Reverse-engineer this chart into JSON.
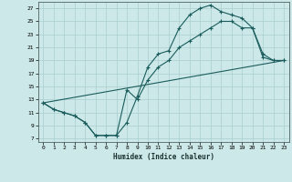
{
  "xlabel": "Humidex (Indice chaleur)",
  "xlim": [
    -0.5,
    23.5
  ],
  "ylim": [
    6.5,
    28
  ],
  "xticks": [
    0,
    1,
    2,
    3,
    4,
    5,
    6,
    7,
    8,
    9,
    10,
    11,
    12,
    13,
    14,
    15,
    16,
    17,
    18,
    19,
    20,
    21,
    22,
    23
  ],
  "yticks": [
    7,
    9,
    11,
    13,
    15,
    17,
    19,
    21,
    23,
    25,
    27
  ],
  "background_color": "#cce8e8",
  "grid_color": "#aacece",
  "line_color": "#1a5c5c",
  "line1_x": [
    0,
    1,
    2,
    3,
    4,
    5,
    6,
    7,
    8,
    9,
    10,
    11,
    12,
    13,
    14,
    15,
    16,
    17,
    18,
    19,
    20,
    21,
    22,
    23
  ],
  "line1_y": [
    12.5,
    11.5,
    11.0,
    10.5,
    9.5,
    7.5,
    7.5,
    7.5,
    9.5,
    13.5,
    18.0,
    20.0,
    20.5,
    24.0,
    26.0,
    27.0,
    27.5,
    26.5,
    26.0,
    25.5,
    24.0,
    19.5,
    19.0,
    19.0
  ],
  "line2_x": [
    0,
    1,
    2,
    3,
    4,
    5,
    6,
    7,
    8,
    9,
    10,
    11,
    12,
    13,
    14,
    15,
    16,
    17,
    18,
    19,
    20,
    21,
    22,
    23
  ],
  "line2_y": [
    12.5,
    11.5,
    11.0,
    10.5,
    9.5,
    7.5,
    7.5,
    7.5,
    14.5,
    13.0,
    16.0,
    18.0,
    19.0,
    21.0,
    22.0,
    23.0,
    24.0,
    25.0,
    25.0,
    24.0,
    24.0,
    20.0,
    19.0,
    19.0
  ],
  "line3_x": [
    0,
    23
  ],
  "line3_y": [
    12.5,
    19.0
  ]
}
